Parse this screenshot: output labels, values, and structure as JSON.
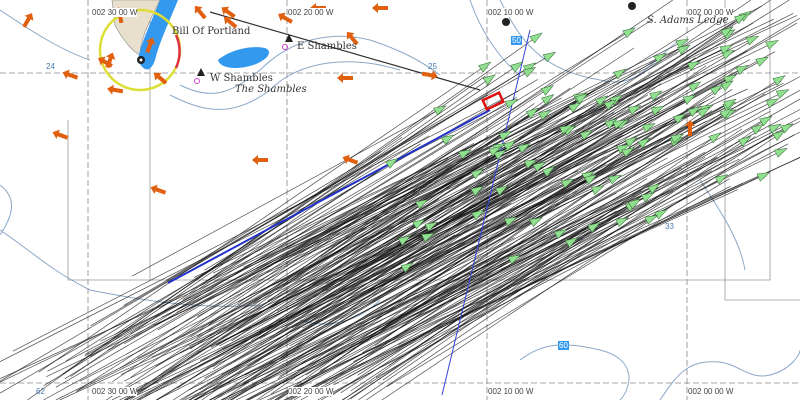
{
  "chart": {
    "longitude_labels": [
      "002 30 00 W",
      "002 20 00 W",
      "002 10 00 W",
      "002 00 00 W"
    ],
    "place_names": {
      "bill": "Bill Of Portland",
      "e_shambles": "E Shambles",
      "w_shambles": "W Shambles",
      "shambles": "The Shambles",
      "ledge": "S. Adams Ledge"
    },
    "depths": [
      "24",
      "25",
      "33",
      "50",
      "60",
      "62"
    ],
    "colors": {
      "land": "#e8e0cc",
      "shallow_water": "#3399ee",
      "vessel_target": "#90e090",
      "vessel_track": "#111111",
      "tidal_arrow": "#e06010",
      "route": "#2233cc",
      "selected_target": "#dd1111",
      "range_ring": "#dddd33"
    },
    "icons": [
      "lighthouse-icon",
      "buoy-icon",
      "vessel-triangle-icon",
      "tidal-stream-arrow-icon"
    ]
  }
}
